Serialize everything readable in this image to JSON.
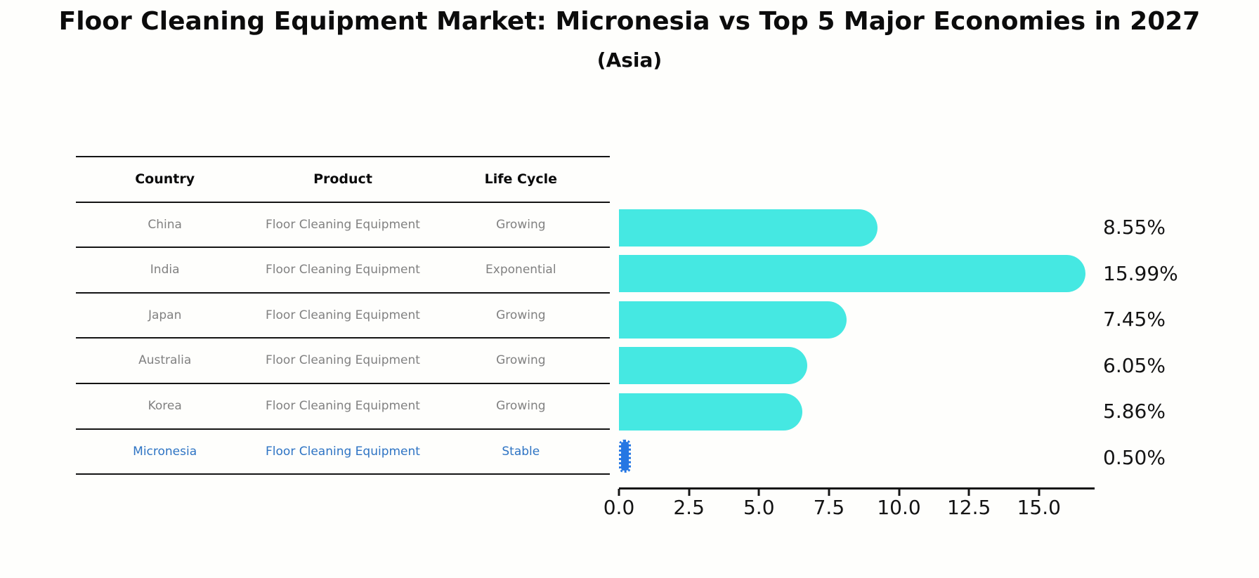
{
  "title": "Floor Cleaning Equipment Market: Micronesia vs Top 5 Major Economies in 2027",
  "subtitle": "(Asia)",
  "table": {
    "headers": [
      "Country",
      "Product",
      "Life Cycle"
    ],
    "rows": [
      {
        "country": "China",
        "product": "Floor Cleaning Equipment",
        "life_cycle": "Growing",
        "highlight": false
      },
      {
        "country": "India",
        "product": "Floor Cleaning Equipment",
        "life_cycle": "Exponential",
        "highlight": false
      },
      {
        "country": "Japan",
        "product": "Floor Cleaning Equipment",
        "life_cycle": "Growing",
        "highlight": false
      },
      {
        "country": "Australia",
        "product": "Floor Cleaning Equipment",
        "life_cycle": "Growing",
        "highlight": false
      },
      {
        "country": "Korea",
        "product": "Floor Cleaning Equipment",
        "life_cycle": "Growing",
        "highlight": false
      },
      {
        "country": "Micronesia",
        "product": "Floor Cleaning Equipment",
        "life_cycle": "Stable",
        "highlight": true
      }
    ]
  },
  "chart_data": {
    "type": "bar",
    "orientation": "horizontal",
    "categories": [
      "China",
      "India",
      "Japan",
      "Australia",
      "Korea",
      "Micronesia"
    ],
    "values": [
      8.55,
      15.99,
      7.45,
      6.05,
      5.86,
      0.5
    ],
    "value_labels": [
      "8.55%",
      "15.99%",
      "7.45%",
      "6.05%",
      "5.86%",
      "0.50%"
    ],
    "x_tick_values": [
      0.0,
      2.5,
      5.0,
      7.5,
      10.0,
      12.5,
      15.0
    ],
    "x_tick_labels": [
      "0.0",
      "2.5",
      "5.0",
      "7.5",
      "10.0",
      "12.5",
      "15.0"
    ],
    "xlim": [
      0,
      17
    ],
    "grid": false,
    "legend": "none",
    "bar_color": "#45e8e2",
    "highlight_color": "#2577e3",
    "highlight_index": 5,
    "title": "Floor Cleaning Equipment Market: Micronesia vs Top 5 Major Economies in 2027 (Asia)",
    "xlabel": "",
    "ylabel": ""
  },
  "colors": {
    "background": "#fefefc",
    "bar": "#45e8e2",
    "highlight_bar": "#2577e3",
    "highlight_text": "#2e74c4",
    "body_text": "#818181",
    "heading_text": "#0a0a0a",
    "axis": "#141414"
  }
}
